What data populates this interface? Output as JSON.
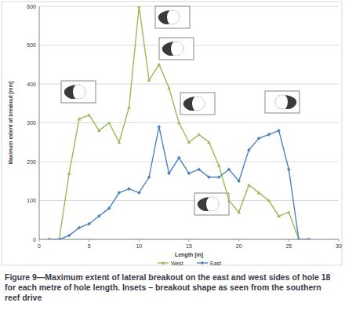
{
  "chart_data": {
    "type": "line",
    "title": "Figure 9—Maximum extent of lateral breakout on the east and west sides of hole 18 for each metre of hole length. Insets – breakout shape as seen from the southern reef drive",
    "x_label": "Length [m]",
    "y_label": "Maximum extent of breakout [mm]",
    "x": [
      1,
      2,
      3,
      4,
      5,
      6,
      7,
      8,
      9,
      10,
      11,
      12,
      13,
      14,
      15,
      16,
      17,
      18,
      19,
      20,
      21,
      22,
      23,
      24,
      25,
      26,
      27
    ],
    "series": [
      {
        "name": "West",
        "color": "#9bbb59",
        "marker": "triangle",
        "values": [
          null,
          0,
          170,
          310,
          320,
          280,
          300,
          250,
          340,
          600,
          410,
          450,
          390,
          300,
          250,
          270,
          250,
          190,
          100,
          70,
          140,
          120,
          100,
          60,
          70,
          0,
          null
        ]
      },
      {
        "name": "East",
        "color": "#4f81bd",
        "marker": "diamond",
        "values": [
          0,
          0,
          10,
          30,
          40,
          60,
          80,
          120,
          130,
          120,
          160,
          290,
          170,
          210,
          170,
          180,
          160,
          160,
          180,
          150,
          230,
          260,
          270,
          280,
          180,
          0,
          0
        ]
      }
    ],
    "xlim": [
      0,
      30
    ],
    "xticks": [
      0,
      5,
      10,
      15,
      20,
      25,
      30
    ],
    "ylim": [
      0,
      600
    ],
    "yticks": [
      0,
      100,
      200,
      300,
      400,
      500,
      600
    ],
    "grid": true,
    "legend": "bottom"
  }
}
